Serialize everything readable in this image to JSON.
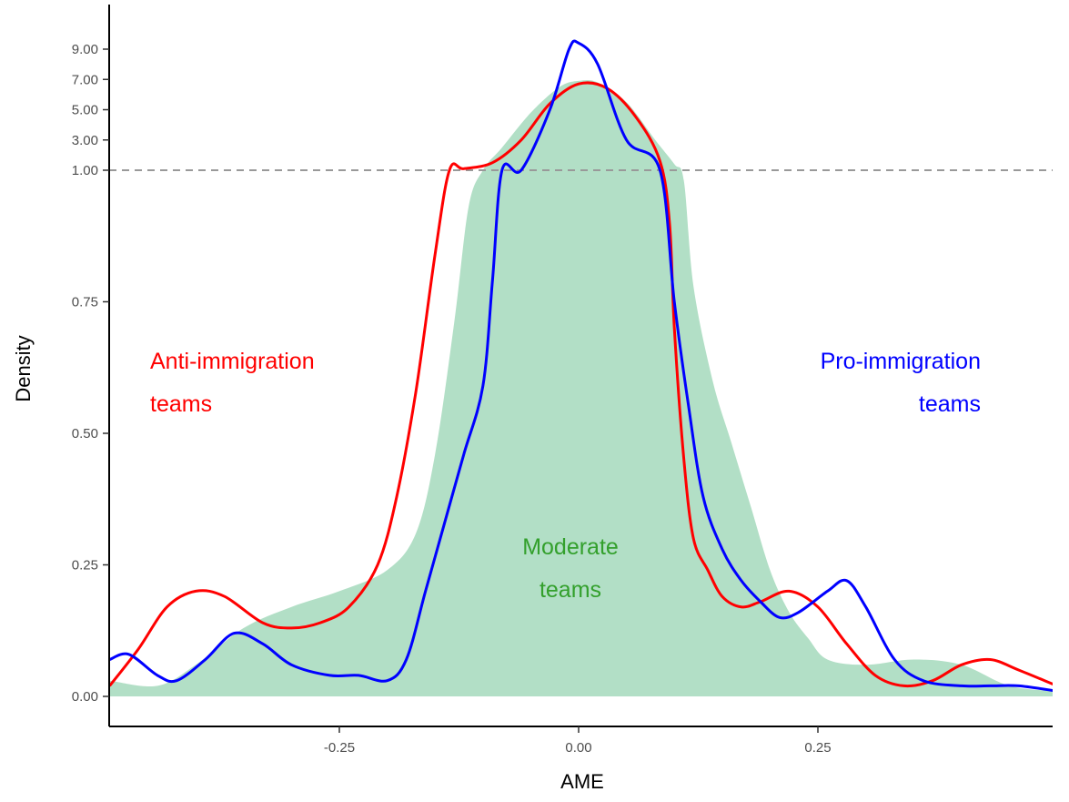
{
  "chart_data": {
    "type": "area",
    "xlabel": "AME",
    "ylabel": "Density",
    "xlim": [
      -0.49,
      0.5
    ],
    "x_ticks": [
      "-0.25",
      "0.00",
      "0.25"
    ],
    "x_tick_values": [
      -0.25,
      0.0,
      0.25
    ],
    "y_ticks": [
      "0.00",
      "0.25",
      "0.50",
      "0.75",
      "1.00",
      "3.00",
      "5.00",
      "7.00",
      "9.00"
    ],
    "y_tick_values": [
      0.0,
      0.25,
      0.5,
      0.75,
      1.0,
      3.0,
      5.0,
      7.0,
      9.0
    ],
    "y_scale_note": "linear 0-1, compressed above 1",
    "reference_line": {
      "y": 1.0,
      "style": "dashed",
      "color": "#999999"
    },
    "annotations": [
      {
        "id": "anti",
        "lines": [
          "Anti-immigration",
          "teams"
        ],
        "color": "#ff0000"
      },
      {
        "id": "pro",
        "lines": [
          "Pro-immigration",
          "teams"
        ],
        "color": "#0000ff"
      },
      {
        "id": "moderate",
        "lines": [
          "Moderate",
          "teams"
        ],
        "color": "#33a02c"
      }
    ],
    "series": [
      {
        "name": "Moderate teams",
        "style": "filled",
        "color": "#b2dfc6",
        "points": [
          [
            -0.49,
            0.03
          ],
          [
            -0.44,
            0.02
          ],
          [
            -0.4,
            0.06
          ],
          [
            -0.35,
            0.13
          ],
          [
            -0.3,
            0.17
          ],
          [
            -0.25,
            0.2
          ],
          [
            -0.2,
            0.24
          ],
          [
            -0.17,
            0.31
          ],
          [
            -0.15,
            0.46
          ],
          [
            -0.13,
            0.71
          ],
          [
            -0.115,
            0.93
          ],
          [
            -0.1,
            1.0
          ],
          [
            -0.08,
            2.5
          ],
          [
            -0.05,
            4.8
          ],
          [
            -0.02,
            6.5
          ],
          [
            0.0,
            6.9
          ],
          [
            0.02,
            6.8
          ],
          [
            0.05,
            5.5
          ],
          [
            0.08,
            3.0
          ],
          [
            0.1,
            1.4
          ],
          [
            0.11,
            0.98
          ],
          [
            0.12,
            0.78
          ],
          [
            0.14,
            0.6
          ],
          [
            0.16,
            0.48
          ],
          [
            0.18,
            0.36
          ],
          [
            0.2,
            0.24
          ],
          [
            0.22,
            0.16
          ],
          [
            0.24,
            0.11
          ],
          [
            0.26,
            0.07
          ],
          [
            0.3,
            0.06
          ],
          [
            0.35,
            0.07
          ],
          [
            0.4,
            0.06
          ],
          [
            0.45,
            0.02
          ],
          [
            0.5,
            0.01
          ]
        ]
      },
      {
        "name": "Anti-immigration teams",
        "style": "line",
        "color": "#ff0000",
        "points": [
          [
            -0.49,
            0.02
          ],
          [
            -0.46,
            0.09
          ],
          [
            -0.43,
            0.17
          ],
          [
            -0.4,
            0.2
          ],
          [
            -0.37,
            0.19
          ],
          [
            -0.33,
            0.14
          ],
          [
            -0.3,
            0.13
          ],
          [
            -0.27,
            0.14
          ],
          [
            -0.24,
            0.17
          ],
          [
            -0.21,
            0.25
          ],
          [
            -0.19,
            0.38
          ],
          [
            -0.17,
            0.58
          ],
          [
            -0.15,
            0.84
          ],
          [
            -0.135,
            1.0
          ],
          [
            -0.12,
            1.1
          ],
          [
            -0.09,
            1.5
          ],
          [
            -0.06,
            3.0
          ],
          [
            -0.03,
            5.4
          ],
          [
            0.0,
            6.7
          ],
          [
            0.03,
            6.4
          ],
          [
            0.06,
            4.5
          ],
          [
            0.085,
            1.6
          ],
          [
            0.095,
            0.9
          ],
          [
            0.1,
            0.7
          ],
          [
            0.11,
            0.45
          ],
          [
            0.12,
            0.3
          ],
          [
            0.135,
            0.24
          ],
          [
            0.15,
            0.19
          ],
          [
            0.17,
            0.17
          ],
          [
            0.19,
            0.18
          ],
          [
            0.22,
            0.2
          ],
          [
            0.25,
            0.17
          ],
          [
            0.28,
            0.1
          ],
          [
            0.31,
            0.04
          ],
          [
            0.34,
            0.02
          ],
          [
            0.37,
            0.03
          ],
          [
            0.4,
            0.06
          ],
          [
            0.43,
            0.07
          ],
          [
            0.46,
            0.05
          ],
          [
            0.5,
            0.02
          ]
        ]
      },
      {
        "name": "Pro-immigration teams",
        "style": "line",
        "color": "#0000ff",
        "points": [
          [
            -0.49,
            0.07
          ],
          [
            -0.47,
            0.08
          ],
          [
            -0.44,
            0.04
          ],
          [
            -0.42,
            0.03
          ],
          [
            -0.39,
            0.07
          ],
          [
            -0.36,
            0.12
          ],
          [
            -0.33,
            0.1
          ],
          [
            -0.3,
            0.06
          ],
          [
            -0.26,
            0.04
          ],
          [
            -0.23,
            0.04
          ],
          [
            -0.2,
            0.03
          ],
          [
            -0.18,
            0.07
          ],
          [
            -0.16,
            0.2
          ],
          [
            -0.14,
            0.33
          ],
          [
            -0.12,
            0.46
          ],
          [
            -0.1,
            0.59
          ],
          [
            -0.09,
            0.79
          ],
          [
            -0.08,
            1.0
          ],
          [
            -0.06,
            1.0
          ],
          [
            -0.03,
            5.0
          ],
          [
            -0.01,
            9.0
          ],
          [
            0.0,
            9.4
          ],
          [
            0.02,
            8.0
          ],
          [
            0.05,
            3.0
          ],
          [
            0.085,
            1.0
          ],
          [
            0.1,
            0.75
          ],
          [
            0.115,
            0.55
          ],
          [
            0.13,
            0.38
          ],
          [
            0.15,
            0.28
          ],
          [
            0.17,
            0.22
          ],
          [
            0.19,
            0.18
          ],
          [
            0.21,
            0.15
          ],
          [
            0.23,
            0.16
          ],
          [
            0.26,
            0.2
          ],
          [
            0.28,
            0.22
          ],
          [
            0.3,
            0.17
          ],
          [
            0.33,
            0.07
          ],
          [
            0.36,
            0.03
          ],
          [
            0.4,
            0.02
          ],
          [
            0.43,
            0.02
          ],
          [
            0.46,
            0.02
          ],
          [
            0.5,
            0.01
          ]
        ]
      }
    ]
  }
}
